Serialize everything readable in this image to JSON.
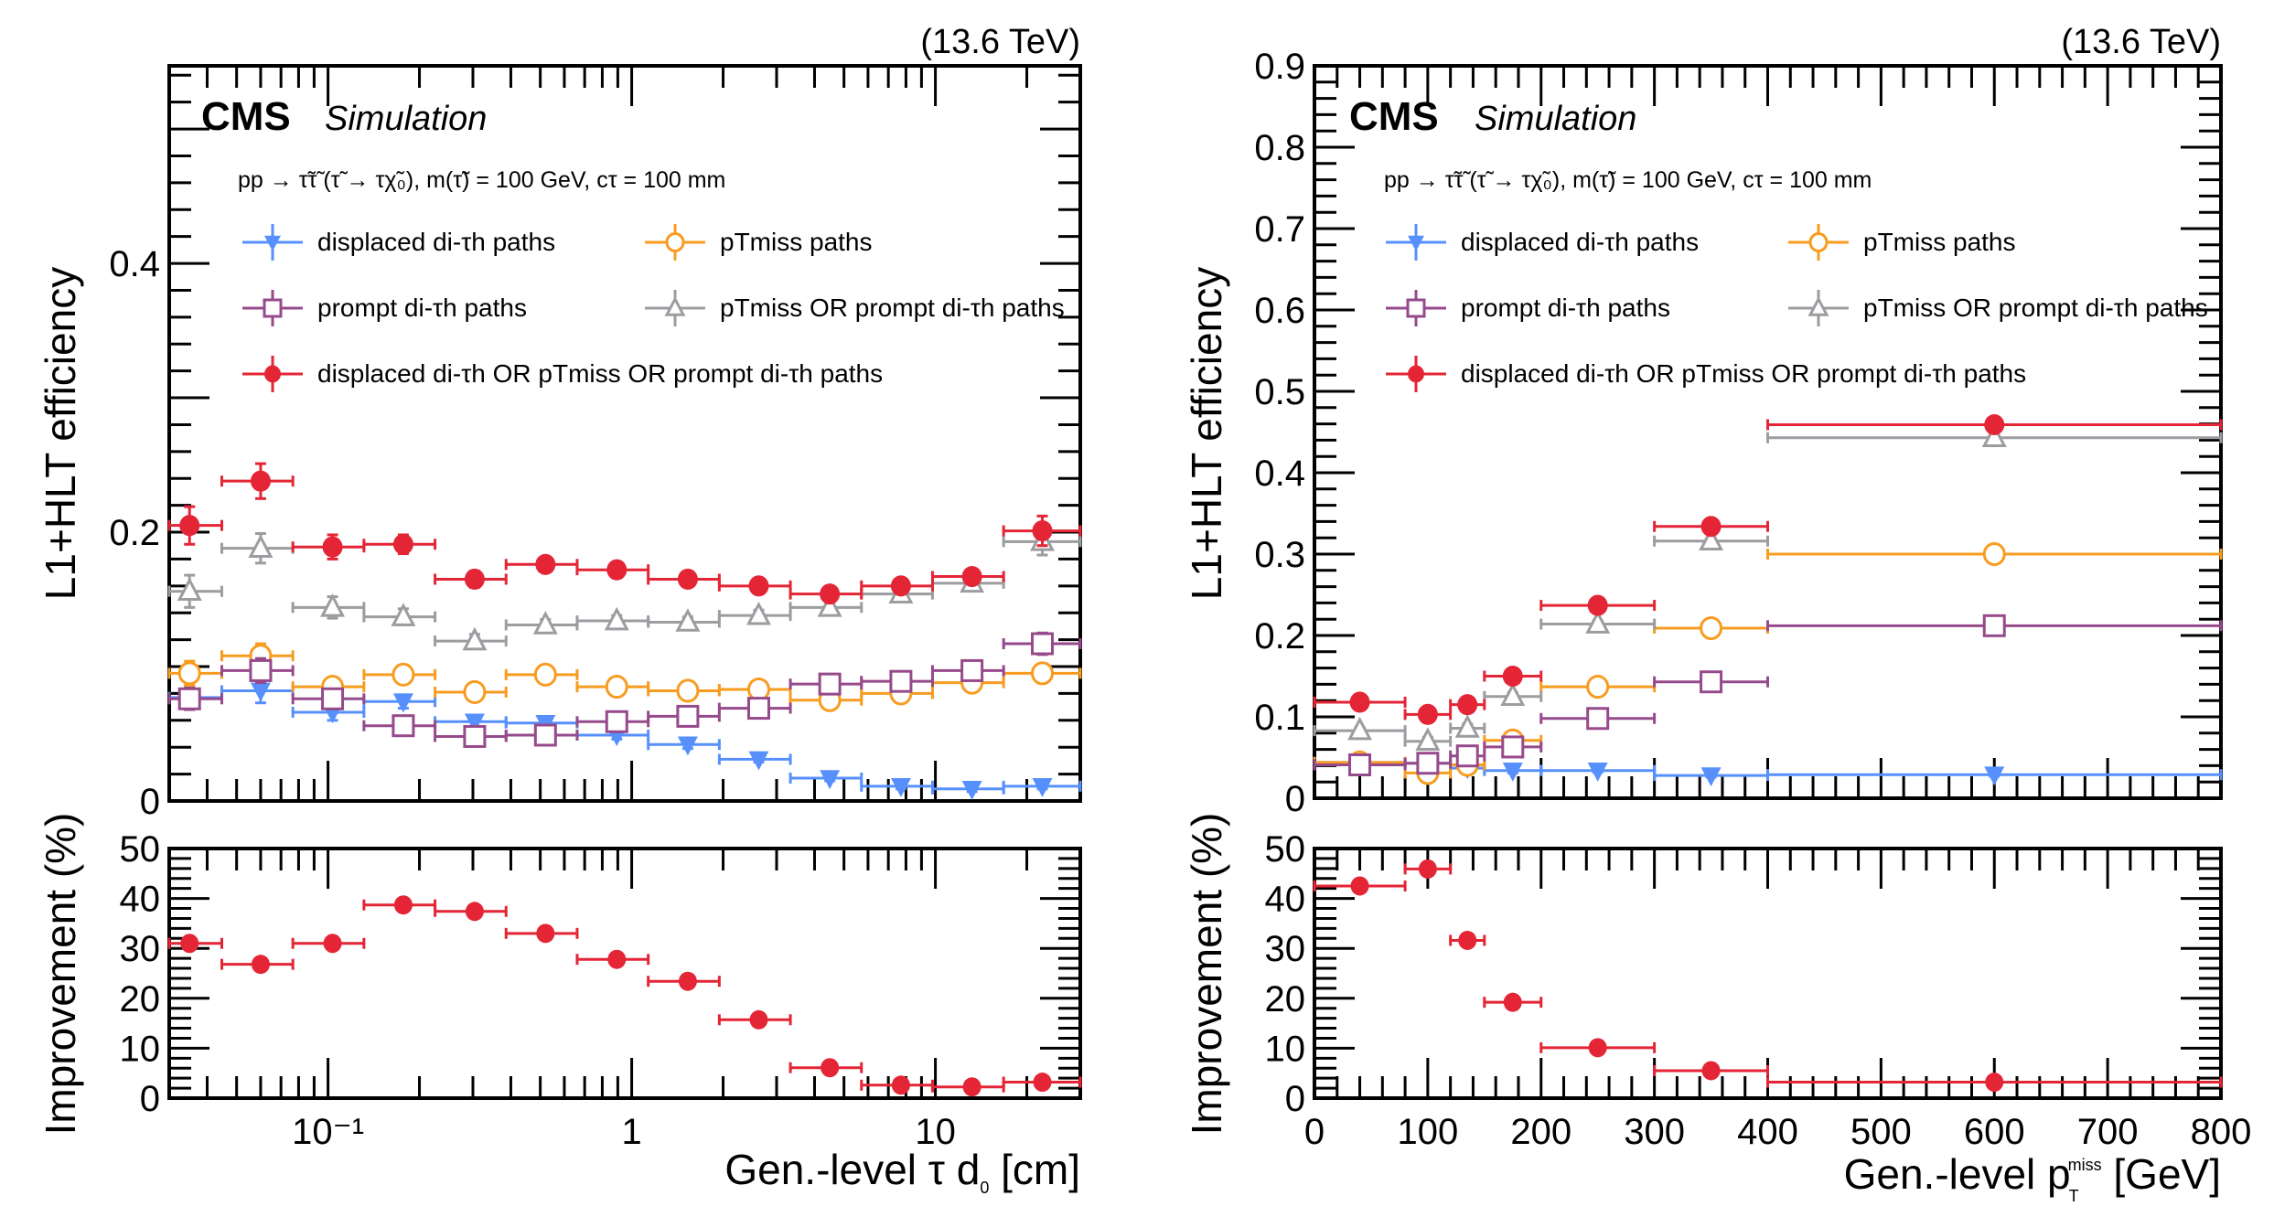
{
  "colors": {
    "displaced": "#5790fc",
    "ptmiss": "#f89c20",
    "prompt": "#964a8b",
    "ptmiss_or_prompt": "#9c9ca1",
    "combined": "#e42536"
  },
  "common": {
    "energy": "(13.6 TeV)",
    "cms": "CMS",
    "simulation": "Simulation",
    "process": "pp → τ̃τ̃ (τ̃ → τχ̃₀), m(τ̃) = 100 GeV, cτ = 100 mm",
    "legend": [
      {
        "key": "displaced",
        "marker": "triangle-down",
        "label": "displaced di-τh paths"
      },
      {
        "key": "ptmiss",
        "marker": "open-circle",
        "label": "pTmiss paths"
      },
      {
        "key": "prompt",
        "marker": "open-square",
        "label": "prompt di-τh paths"
      },
      {
        "key": "ptmiss_or_prompt",
        "marker": "open-triangle",
        "label": "pTmiss OR prompt di-τh paths"
      },
      {
        "key": "combined",
        "marker": "filled-circle",
        "label": "displaced di-τh OR pTmiss OR prompt di-τh paths"
      }
    ]
  },
  "chart_data": [
    {
      "type": "scatter",
      "panel": "left-main",
      "title": "",
      "xlabel": "Gen.-level τ d0 [cm]",
      "ylabel": "L1+HLT efficiency",
      "xscale": "log",
      "xlim": [
        0.03,
        30
      ],
      "ylim": [
        0,
        0.547
      ],
      "yticks": [
        0,
        0.2,
        0.4
      ],
      "ytick_labels": [
        "0",
        "0.2",
        "0.4"
      ],
      "bin_edges": [
        0.03,
        0.0447,
        0.0766,
        0.1313,
        0.2251,
        0.3858,
        0.6613,
        1.1335,
        1.943,
        3.3304,
        5.7085,
        9.7847,
        16.772,
        30
      ],
      "x": [
        0.035,
        0.06,
        0.1035,
        0.177,
        0.304,
        0.52,
        0.893,
        1.53,
        2.62,
        4.49,
        7.7,
        13.2,
        22.5
      ],
      "series": [
        {
          "name": "displaced di-τh paths",
          "key": "displaced",
          "values": [
            0.077,
            0.082,
            0.066,
            0.074,
            0.059,
            0.058,
            0.049,
            0.042,
            0.031,
            0.017,
            0.011,
            0.009,
            0.011
          ],
          "errors": [
            0.008,
            0.009,
            0.006,
            0.005,
            0.004,
            0.004,
            0.003,
            0.003,
            0.002,
            0.002,
            0.002,
            0.002,
            0.002
          ]
        },
        {
          "name": "pTmiss paths",
          "key": "ptmiss",
          "values": [
            0.095,
            0.108,
            0.085,
            0.094,
            0.081,
            0.094,
            0.085,
            0.082,
            0.083,
            0.075,
            0.08,
            0.088,
            0.095
          ],
          "errors": [
            0.009,
            0.009,
            0.006,
            0.005,
            0.004,
            0.004,
            0.003,
            0.003,
            0.003,
            0.003,
            0.003,
            0.004,
            0.007
          ]
        },
        {
          "name": "prompt di-τh paths",
          "key": "prompt",
          "values": [
            0.076,
            0.097,
            0.076,
            0.056,
            0.048,
            0.049,
            0.059,
            0.063,
            0.069,
            0.087,
            0.089,
            0.097,
            0.117
          ],
          "errors": [
            0.008,
            0.009,
            0.006,
            0.004,
            0.004,
            0.003,
            0.003,
            0.003,
            0.003,
            0.003,
            0.003,
            0.004,
            0.008
          ]
        },
        {
          "name": "pTmiss OR prompt di-τh paths",
          "key": "ptmiss_or_prompt",
          "values": [
            0.156,
            0.188,
            0.144,
            0.137,
            0.119,
            0.131,
            0.134,
            0.133,
            0.138,
            0.144,
            0.154,
            0.162,
            0.193
          ],
          "errors": [
            0.012,
            0.011,
            0.008,
            0.006,
            0.005,
            0.004,
            0.004,
            0.004,
            0.004,
            0.004,
            0.004,
            0.005,
            0.01
          ]
        },
        {
          "name": "displaced di-τh OR pTmiss OR prompt di-τh paths",
          "key": "combined",
          "values": [
            0.205,
            0.238,
            0.189,
            0.191,
            0.165,
            0.176,
            0.172,
            0.165,
            0.16,
            0.154,
            0.16,
            0.167,
            0.201
          ],
          "errors": [
            0.014,
            0.013,
            0.009,
            0.007,
            0.006,
            0.005,
            0.004,
            0.004,
            0.004,
            0.004,
            0.004,
            0.005,
            0.011
          ]
        }
      ]
    },
    {
      "type": "scatter",
      "panel": "left-ratio",
      "xlabel": "Gen.-level τ d0 [cm]",
      "ylabel": "Improvement (%)",
      "xscale": "log",
      "xlim": [
        0.03,
        30
      ],
      "ylim": [
        0,
        50
      ],
      "yticks": [
        0,
        10,
        20,
        30,
        40,
        50
      ],
      "xticks": [
        0.1,
        1,
        10
      ],
      "xtick_labels": [
        "10⁻¹",
        "1",
        "10"
      ],
      "x": [
        0.035,
        0.06,
        0.1035,
        0.177,
        0.304,
        0.52,
        0.893,
        1.53,
        2.62,
        4.49,
        7.7,
        13.2,
        22.5
      ],
      "series": [
        {
          "name": "Improvement",
          "key": "combined",
          "values": [
            31.0,
            26.8,
            31.0,
            38.7,
            37.4,
            33.0,
            27.8,
            23.4,
            15.7,
            6.1,
            2.6,
            2.25,
            3.2
          ]
        }
      ]
    },
    {
      "type": "scatter",
      "panel": "right-main",
      "xlabel": "Gen.-level pTmiss [GeV]",
      "ylabel": "L1+HLT efficiency",
      "xscale": "linear",
      "xlim": [
        0,
        800
      ],
      "ylim": [
        0,
        0.9
      ],
      "yticks": [
        0,
        0.1,
        0.2,
        0.3,
        0.4,
        0.5,
        0.6,
        0.7,
        0.8,
        0.9
      ],
      "ytick_labels": [
        "0",
        "0.1",
        "0.2",
        "0.3",
        "0.4",
        "0.5",
        "0.6",
        "0.7",
        "0.8",
        "0.9"
      ],
      "bin_edges": [
        0,
        80,
        120,
        150,
        200,
        300,
        400,
        800
      ],
      "x": [
        40,
        100,
        135,
        175,
        250,
        350,
        600
      ],
      "series": [
        {
          "name": "displaced di-τh paths",
          "key": "displaced",
          "values": [
            0.044,
            0.043,
            0.037,
            0.034,
            0.034,
            0.028,
            0.029
          ],
          "errors": [
            0.003,
            0.004,
            0.004,
            0.003,
            0.002,
            0.002,
            0.002
          ]
        },
        {
          "name": "pTmiss paths",
          "key": "ptmiss",
          "values": [
            0.044,
            0.031,
            0.041,
            0.071,
            0.137,
            0.209,
            0.3
          ],
          "errors": [
            0.003,
            0.004,
            0.004,
            0.004,
            0.003,
            0.004,
            0.004
          ]
        },
        {
          "name": "prompt di-τh paths",
          "key": "prompt",
          "values": [
            0.041,
            0.043,
            0.052,
            0.063,
            0.098,
            0.143,
            0.212
          ],
          "errors": [
            0.003,
            0.004,
            0.004,
            0.004,
            0.003,
            0.004,
            0.004
          ]
        },
        {
          "name": "pTmiss OR prompt di-τh paths",
          "key": "ptmiss_or_prompt",
          "values": [
            0.083,
            0.07,
            0.086,
            0.125,
            0.214,
            0.316,
            0.443
          ],
          "errors": [
            0.004,
            0.005,
            0.005,
            0.005,
            0.004,
            0.004,
            0.006
          ]
        },
        {
          "name": "displaced di-τh OR pTmiss OR prompt di-τh paths",
          "key": "combined",
          "values": [
            0.118,
            0.103,
            0.115,
            0.15,
            0.237,
            0.334,
            0.459
          ],
          "errors": [
            0.004,
            0.005,
            0.005,
            0.005,
            0.004,
            0.004,
            0.008
          ]
        }
      ]
    },
    {
      "type": "scatter",
      "panel": "right-ratio",
      "xlabel": "Gen.-level pTmiss [GeV]",
      "ylabel": "Improvement (%)",
      "xscale": "linear",
      "xlim": [
        0,
        800
      ],
      "ylim": [
        0,
        50
      ],
      "yticks": [
        0,
        10,
        20,
        30,
        40,
        50
      ],
      "xticks": [
        0,
        100,
        200,
        300,
        400,
        500,
        600,
        700,
        800
      ],
      "xtick_labels": [
        "0",
        "100",
        "200",
        "300",
        "400",
        "500",
        "600",
        "700",
        "800"
      ],
      "bin_edges": [
        0,
        80,
        120,
        150,
        200,
        300,
        400,
        800
      ],
      "x": [
        40,
        100,
        135,
        175,
        250,
        350,
        600
      ],
      "series": [
        {
          "name": "Improvement",
          "key": "combined",
          "values": [
            42.5,
            45.9,
            31.6,
            19.2,
            10.1,
            5.5,
            3.2
          ]
        }
      ]
    }
  ]
}
